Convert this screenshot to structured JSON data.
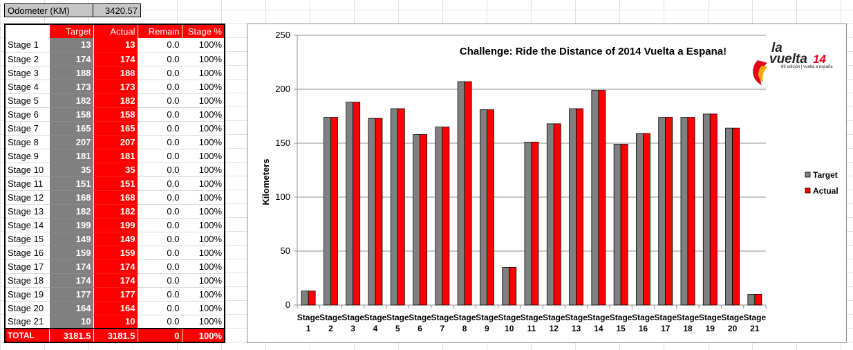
{
  "odometer": {
    "label": "Odometer (KM)",
    "value": "3420.57"
  },
  "table": {
    "headers": [
      "Target",
      "Actual",
      "Remain",
      "Stage %"
    ],
    "rows": [
      {
        "stage": "Stage 1",
        "target": "13",
        "actual": "13",
        "remain": "0.0",
        "pct": "100%"
      },
      {
        "stage": "Stage 2",
        "target": "174",
        "actual": "174",
        "remain": "0.0",
        "pct": "100%"
      },
      {
        "stage": "Stage 3",
        "target": "188",
        "actual": "188",
        "remain": "0.0",
        "pct": "100%"
      },
      {
        "stage": "Stage 4",
        "target": "173",
        "actual": "173",
        "remain": "0.0",
        "pct": "100%"
      },
      {
        "stage": "Stage 5",
        "target": "182",
        "actual": "182",
        "remain": "0.0",
        "pct": "100%"
      },
      {
        "stage": "Stage 6",
        "target": "158",
        "actual": "158",
        "remain": "0.0",
        "pct": "100%"
      },
      {
        "stage": "Stage 7",
        "target": "165",
        "actual": "165",
        "remain": "0.0",
        "pct": "100%"
      },
      {
        "stage": "Stage 8",
        "target": "207",
        "actual": "207",
        "remain": "0.0",
        "pct": "100%"
      },
      {
        "stage": "Stage 9",
        "target": "181",
        "actual": "181",
        "remain": "0.0",
        "pct": "100%"
      },
      {
        "stage": "Stage 10",
        "target": "35",
        "actual": "35",
        "remain": "0.0",
        "pct": "100%"
      },
      {
        "stage": "Stage 11",
        "target": "151",
        "actual": "151",
        "remain": "0.0",
        "pct": "100%"
      },
      {
        "stage": "Stage 12",
        "target": "168",
        "actual": "168",
        "remain": "0.0",
        "pct": "100%"
      },
      {
        "stage": "Stage 13",
        "target": "182",
        "actual": "182",
        "remain": "0.0",
        "pct": "100%"
      },
      {
        "stage": "Stage 14",
        "target": "199",
        "actual": "199",
        "remain": "0.0",
        "pct": "100%"
      },
      {
        "stage": "Stage 15",
        "target": "149",
        "actual": "149",
        "remain": "0.0",
        "pct": "100%"
      },
      {
        "stage": "Stage 16",
        "target": "159",
        "actual": "159",
        "remain": "0.0",
        "pct": "100%"
      },
      {
        "stage": "Stage 17",
        "target": "174",
        "actual": "174",
        "remain": "0.0",
        "pct": "100%"
      },
      {
        "stage": "Stage 18",
        "target": "174",
        "actual": "174",
        "remain": "0.0",
        "pct": "100%"
      },
      {
        "stage": "Stage 19",
        "target": "177",
        "actual": "177",
        "remain": "0.0",
        "pct": "100%"
      },
      {
        "stage": "Stage 20",
        "target": "164",
        "actual": "164",
        "remain": "0.0",
        "pct": "100%"
      },
      {
        "stage": "Stage 21",
        "target": "10",
        "actual": "10",
        "remain": "0.0",
        "pct": "100%"
      }
    ],
    "total": {
      "stage": "TOTAL",
      "target": "3181.5",
      "actual": "3181.5",
      "remain": "0",
      "pct": "100%"
    }
  },
  "logo": {
    "line1": "la",
    "line2": "vuelta",
    "number": "14",
    "tagline": "69 edición | vuelta a españa"
  },
  "chart_data": {
    "type": "bar",
    "title": "Challenge: Ride the Distance of 2014 Vuelta a Espana!",
    "ylabel": "Kilometers",
    "xlabel": "",
    "ylim": [
      0,
      250
    ],
    "yticks": [
      0,
      50,
      100,
      150,
      200,
      250
    ],
    "grid": true,
    "legend_position": "right",
    "categories": [
      {
        "line1": "Stage",
        "line2": "1"
      },
      {
        "line1": "Stage",
        "line2": "2"
      },
      {
        "line1": "Stage",
        "line2": "3"
      },
      {
        "line1": "Stage",
        "line2": "4"
      },
      {
        "line1": "Stage",
        "line2": "5"
      },
      {
        "line1": "Stage",
        "line2": "6"
      },
      {
        "line1": "Stage",
        "line2": "7"
      },
      {
        "line1": "Stage",
        "line2": "8"
      },
      {
        "line1": "Stage",
        "line2": "9"
      },
      {
        "line1": "Stage",
        "line2": "10"
      },
      {
        "line1": "Stage",
        "line2": "11"
      },
      {
        "line1": "Stage",
        "line2": "12"
      },
      {
        "line1": "Stage",
        "line2": "13"
      },
      {
        "line1": "Stage",
        "line2": "14"
      },
      {
        "line1": "Stage",
        "line2": "15"
      },
      {
        "line1": "Stage",
        "line2": "16"
      },
      {
        "line1": "Stage",
        "line2": "17"
      },
      {
        "line1": "Stage",
        "line2": "18"
      },
      {
        "line1": "Stage",
        "line2": "19"
      },
      {
        "line1": "Stage",
        "line2": "20"
      },
      {
        "line1": "Stage",
        "line2": "21"
      }
    ],
    "series": [
      {
        "name": "Target",
        "color": "#808080",
        "values": [
          13,
          174,
          188,
          173,
          182,
          158,
          165,
          207,
          181,
          35,
          151,
          168,
          182,
          199,
          149,
          159,
          174,
          174,
          177,
          164,
          10
        ]
      },
      {
        "name": "Actual",
        "color": "#ff0000",
        "values": [
          13,
          174,
          188,
          173,
          182,
          158,
          165,
          207,
          181,
          35,
          151,
          168,
          182,
          199,
          149,
          159,
          174,
          174,
          177,
          164,
          10
        ]
      }
    ]
  }
}
